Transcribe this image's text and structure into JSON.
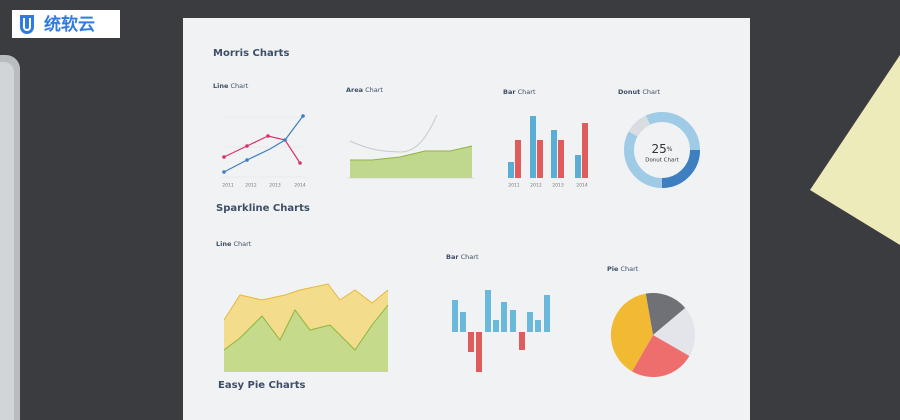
{
  "logo": {
    "text": "统软云"
  },
  "morris": {
    "title": "Morris Charts",
    "line": {
      "bold": "Line",
      "rest": "Chart",
      "years": [
        "2011",
        "2012",
        "2013",
        "2014"
      ]
    },
    "area": {
      "bold": "Area",
      "rest": "Chart"
    },
    "bar": {
      "bold": "Bar",
      "rest": "Chart",
      "years": [
        "2011",
        "2012",
        "2013",
        "2014"
      ]
    },
    "donut": {
      "bold": "Donut",
      "rest": "Chart",
      "value": "25",
      "unit": "%",
      "center_label": "Donut Chart"
    }
  },
  "sparkline": {
    "title": "Sparkline Charts",
    "line": {
      "bold": "Line",
      "rest": "Chart"
    },
    "bar": {
      "bold": "Bar",
      "rest": "Chart"
    },
    "pie": {
      "bold": "Pie",
      "rest": "Chart"
    }
  },
  "easy_pie": {
    "title": "Easy Pie Charts"
  }
}
